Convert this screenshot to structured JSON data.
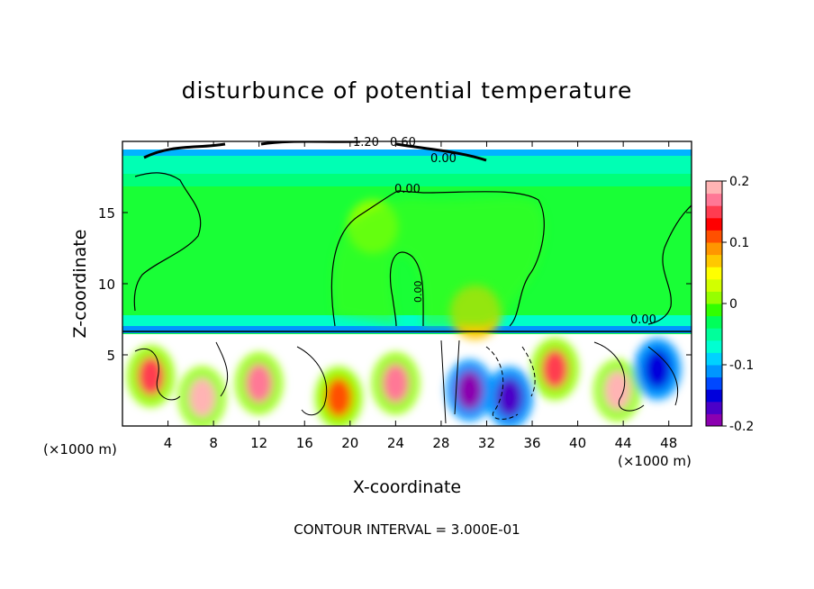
{
  "chart_data": {
    "type": "heatmap",
    "title": "disturbunce of potential temperature",
    "xlabel": "X-coordinate",
    "ylabel": "Z-coordinate",
    "x_unit_label": "(×1000 m)",
    "x_unit_label_right": "(×1000 m)",
    "xlim": [
      0,
      50
    ],
    "ylim": [
      0,
      20
    ],
    "x_ticks": [
      "4",
      "8",
      "12",
      "16",
      "20",
      "24",
      "28",
      "32",
      "36",
      "40",
      "44",
      "48"
    ],
    "y_ticks": [
      "5",
      "10",
      "15"
    ],
    "colorbar": {
      "min": -0.2,
      "max": 0.2,
      "tick_labels": [
        "0.2",
        "0.1",
        "0",
        "-0.1",
        "-0.2"
      ],
      "colors": [
        "#8b00b0",
        "#4b00c8",
        "#0000dc",
        "#0048ff",
        "#0096ff",
        "#00d2ff",
        "#00ffd2",
        "#00ff9b",
        "#00ff5a",
        "#32ff00",
        "#96ff00",
        "#d2ff00",
        "#ffff00",
        "#ffc800",
        "#ff9600",
        "#ff5000",
        "#ff0000",
        "#ff3c50",
        "#ff7896",
        "#ffb4b4"
      ]
    },
    "contour_labels": [
      "1.20",
      "0.60",
      "0.00",
      "0.00",
      "0.00",
      "0.00"
    ],
    "footer": "CONTOUR INTERVAL = 3.000E-01",
    "fields": {
      "tropopause_height": 6.5,
      "upper_layer_value": 0.0,
      "blobs": [
        {
          "x": 22,
          "z": 14,
          "value": 0.02
        },
        {
          "x": 31,
          "z": 8,
          "value": 0.07
        },
        {
          "x": 2.5,
          "z": 3.5,
          "value": 0.15
        },
        {
          "x": 7,
          "z": 2,
          "value": 0.18
        },
        {
          "x": 12,
          "z": 3,
          "value": 0.16
        },
        {
          "x": 19,
          "z": 2,
          "value": 0.12
        },
        {
          "x": 24,
          "z": 3,
          "value": 0.16
        },
        {
          "x": 30.5,
          "z": 2.5,
          "value": -0.2
        },
        {
          "x": 34,
          "z": 2,
          "value": -0.18
        },
        {
          "x": 38,
          "z": 4,
          "value": 0.15
        },
        {
          "x": 43.5,
          "z": 2.5,
          "value": 0.18
        },
        {
          "x": 47,
          "z": 4,
          "value": -0.15
        }
      ]
    }
  }
}
